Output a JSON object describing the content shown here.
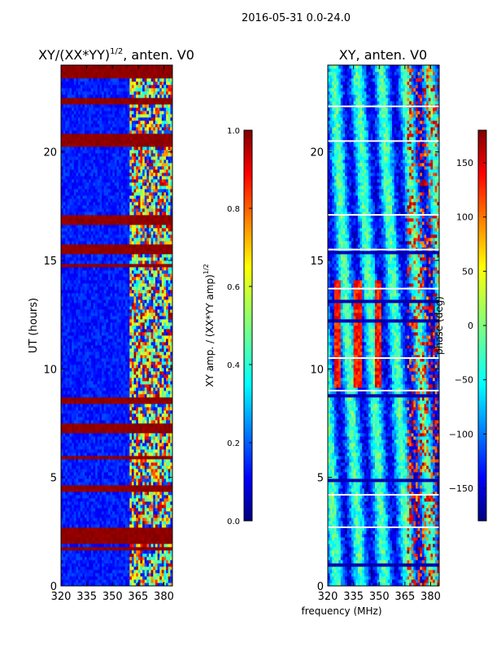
{
  "figure": {
    "suptitle": "2016-05-31 0.0-24.0",
    "shared_xlabel": "frequency (MHz)"
  },
  "chart_data": [
    {
      "type": "heatmap",
      "title_main": "XY/(XX*YY)",
      "title_exp": "1/2",
      "title_tail": ", anten. V0",
      "xlabel": "",
      "ylabel": "UT (hours)",
      "xlim": [
        320,
        385
      ],
      "ylim": [
        0,
        24
      ],
      "xticks": [
        320,
        335,
        350,
        365,
        380
      ],
      "yticks": [
        0,
        5,
        10,
        15,
        20
      ],
      "colorbar": {
        "range": [
          0.0,
          1.0
        ],
        "ticks": [
          "0.0",
          "0.2",
          "0.4",
          "0.6",
          "0.8",
          "1.0"
        ],
        "label_main": "XY amp. / (XX*YY amp)",
        "label_exp": "1/2"
      },
      "saturated_hour_bands": [
        [
          4.3,
          4.6
        ],
        [
          6.9,
          7.4
        ],
        [
          8.3,
          8.7
        ],
        [
          15.2,
          15.7
        ],
        [
          16.6,
          17.0
        ],
        [
          20.2,
          20.8
        ],
        [
          22.2,
          22.4
        ],
        [
          1.9,
          2.6
        ],
        [
          23.3,
          24.0
        ]
      ],
      "bright_frequency_band_mhz": [
        360,
        385
      ],
      "colormap": "jet"
    },
    {
      "type": "heatmap",
      "title_main": "XY, anten. V0",
      "xlabel": "frequency (MHz)",
      "ylabel": "",
      "xlim": [
        320,
        385
      ],
      "ylim": [
        0,
        24
      ],
      "xticks": [
        320,
        335,
        350,
        365,
        380
      ],
      "yticks": [
        0,
        5,
        10,
        15,
        20
      ],
      "colorbar": {
        "range": [
          -180,
          180
        ],
        "ticks": [
          "−150",
          "−100",
          "−50",
          "0",
          "50",
          "100",
          "150"
        ],
        "label": "phase (deg)"
      },
      "gap_hours": [
        2.7,
        4.2,
        9.0,
        10.5,
        13.7,
        15.5,
        17.1,
        20.5,
        22.1
      ],
      "colormap": "jet"
    }
  ]
}
